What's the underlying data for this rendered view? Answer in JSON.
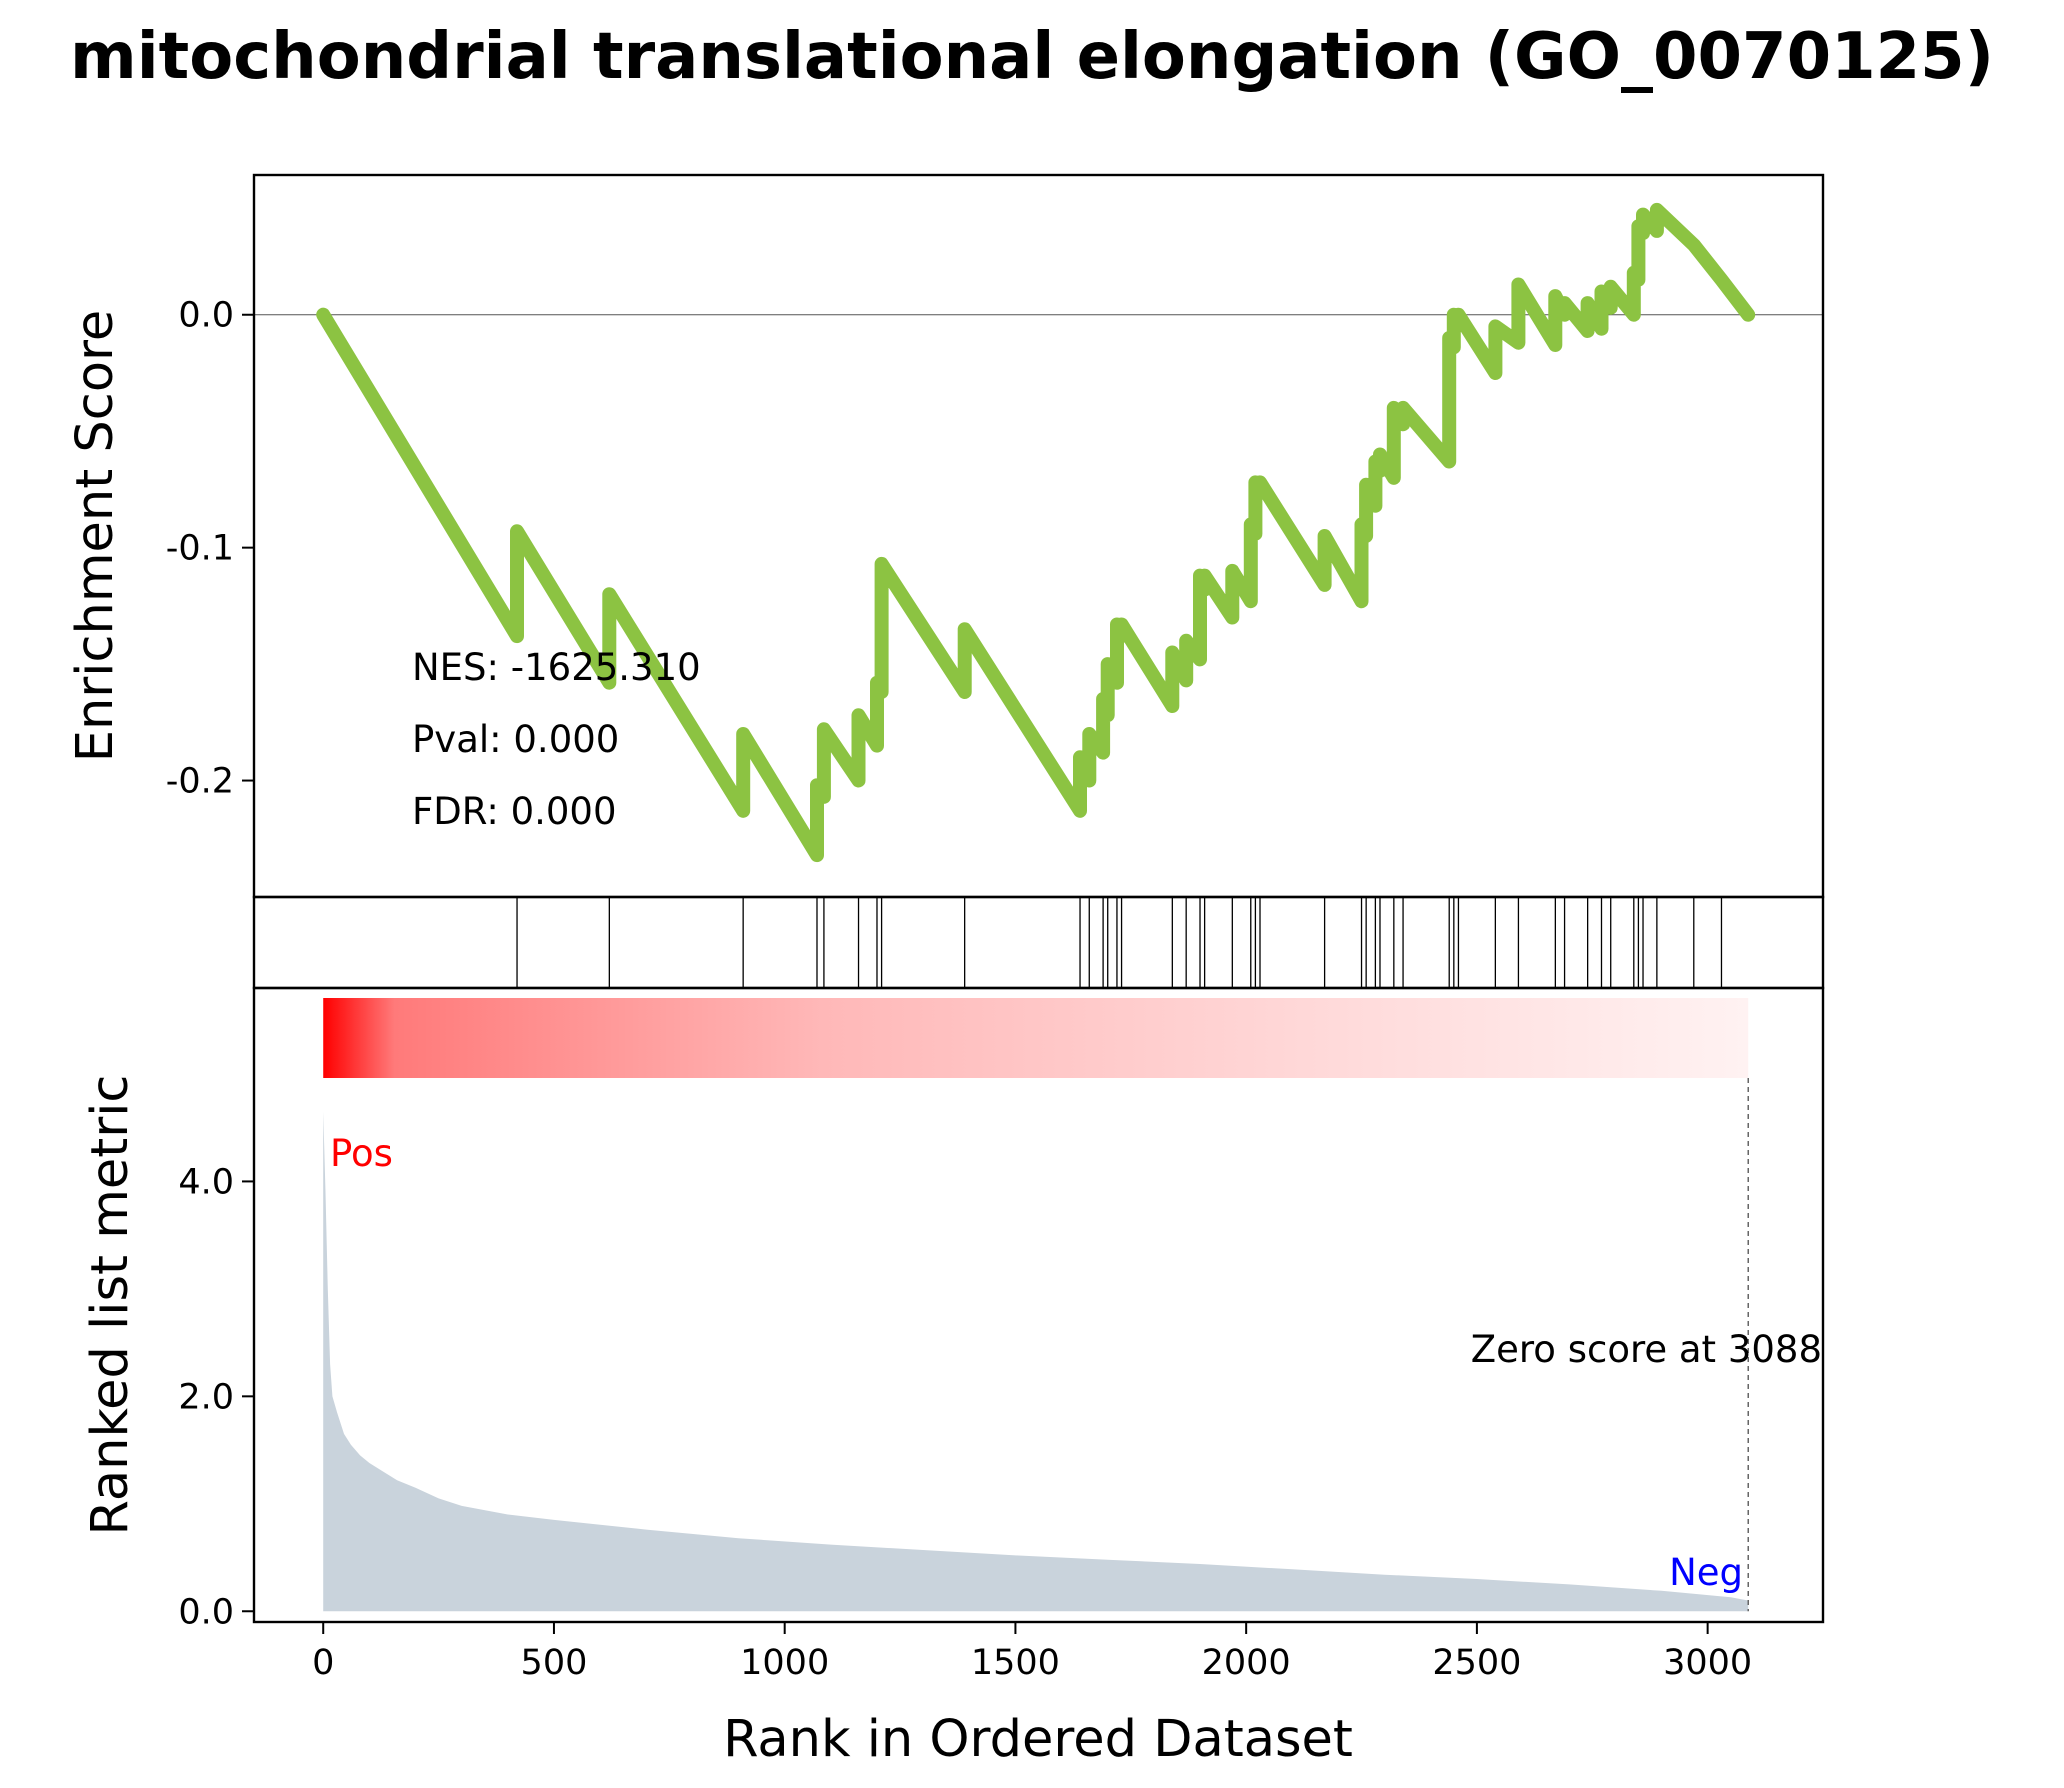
{
  "chart_data": {
    "type": "line",
    "title": "mitochondrial translational elongation (GO_0070125)",
    "xlabel": "Rank in Ordered Dataset",
    "ylabel_top": "Enrichment Score",
    "ylabel_bottom": "Ranked list metric",
    "xlim": [
      -150,
      3250
    ],
    "ylim_top": [
      -0.25,
      0.06
    ],
    "ylim_bottom": [
      -0.1,
      5.8
    ],
    "x_ticks": [
      0,
      500,
      1000,
      1500,
      2000,
      2500,
      3000
    ],
    "x_tick_labels": [
      "0",
      "500",
      "1000",
      "1500",
      "2000",
      "2500",
      "3000"
    ],
    "y_ticks_top": [
      0.0,
      -0.1,
      -0.2
    ],
    "y_tick_labels_top": [
      "0.0",
      "-0.1",
      "-0.2"
    ],
    "y_ticks_bottom": [
      0.0,
      2.0,
      4.0
    ],
    "y_tick_labels_bottom": [
      "0.0",
      "2.0",
      "4.0"
    ],
    "stats": {
      "nes": "NES: -1625.310",
      "pval": "Pval: 0.000",
      "fdr": "FDR: 0.000"
    },
    "annotations": {
      "pos": "Pos",
      "neg": "Neg",
      "zero": "Zero score at 3088",
      "zero_rank": 3088
    },
    "hit_ranks": [
      420,
      620,
      910,
      1070,
      1085,
      1160,
      1200,
      1210,
      1390,
      1640,
      1660,
      1690,
      1700,
      1720,
      1730,
      1840,
      1870,
      1900,
      1910,
      1970,
      2010,
      2020,
      2030,
      2170,
      2250,
      2260,
      2280,
      2290,
      2320,
      2340,
      2440,
      2450,
      2460,
      2540,
      2590,
      2670,
      2690,
      2740,
      2770,
      2790,
      2840,
      2850,
      2860,
      2890,
      2970,
      3030
    ],
    "es_profile": {
      "x": [
        0,
        420,
        420,
        620,
        620,
        910,
        910,
        1070,
        1070,
        1085,
        1085,
        1160,
        1160,
        1200,
        1200,
        1210,
        1210,
        1390,
        1390,
        1640,
        1640,
        1660,
        1660,
        1690,
        1690,
        1700,
        1700,
        1720,
        1720,
        1730,
        1730,
        1840,
        1840,
        1870,
        1870,
        1900,
        1900,
        1910,
        1910,
        1970,
        1970,
        2010,
        2010,
        2020,
        2020,
        2030,
        2030,
        2170,
        2170,
        2250,
        2250,
        2260,
        2260,
        2280,
        2280,
        2290,
        2290,
        2320,
        2320,
        2340,
        2340,
        2440,
        2440,
        2450,
        2450,
        2460,
        2460,
        2540,
        2540,
        2590,
        2590,
        2670,
        2670,
        2690,
        2690,
        2740,
        2740,
        2770,
        2770,
        2790,
        2790,
        2840,
        2840,
        2850,
        2850,
        2860,
        2860,
        2890,
        2890,
        2970,
        2970,
        3030,
        3030,
        3088
      ],
      "y": [
        0.0,
        -0.138,
        -0.093,
        -0.158,
        -0.12,
        -0.213,
        -0.18,
        -0.232,
        -0.202,
        -0.207,
        -0.178,
        -0.2,
        -0.172,
        -0.185,
        -0.158,
        -0.162,
        -0.107,
        -0.162,
        -0.135,
        -0.213,
        -0.19,
        -0.2,
        -0.18,
        -0.188,
        -0.165,
        -0.172,
        -0.15,
        -0.158,
        -0.133,
        -0.138,
        -0.133,
        -0.168,
        -0.145,
        -0.157,
        -0.14,
        -0.148,
        -0.112,
        -0.118,
        -0.112,
        -0.13,
        -0.11,
        -0.123,
        -0.09,
        -0.094,
        -0.072,
        -0.076,
        -0.072,
        -0.116,
        -0.095,
        -0.123,
        -0.09,
        -0.095,
        -0.073,
        -0.082,
        -0.063,
        -0.067,
        -0.06,
        -0.07,
        -0.04,
        -0.047,
        -0.04,
        -0.063,
        -0.01,
        -0.014,
        0.0,
        -0.003,
        0.0,
        -0.025,
        -0.005,
        -0.012,
        0.013,
        -0.013,
        0.008,
        0.0,
        0.005,
        -0.007,
        0.005,
        -0.006,
        0.01,
        0.003,
        0.012,
        0.0,
        0.018,
        0.015,
        0.038,
        0.035,
        0.043,
        0.036,
        0.045,
        0.03,
        0.03,
        0.015,
        0.015,
        0.0
      ]
    },
    "metric_profile": {
      "x": [
        0,
        5,
        10,
        15,
        20,
        30,
        45,
        60,
        80,
        100,
        130,
        160,
        200,
        250,
        300,
        400,
        500,
        700,
        900,
        1100,
        1300,
        1500,
        1700,
        1900,
        2100,
        2300,
        2500,
        2700,
        2900,
        3050,
        3088
      ],
      "y": [
        4.65,
        3.9,
        3.0,
        2.3,
        2.0,
        1.85,
        1.65,
        1.55,
        1.45,
        1.38,
        1.3,
        1.22,
        1.15,
        1.05,
        0.98,
        0.9,
        0.85,
        0.76,
        0.68,
        0.62,
        0.57,
        0.52,
        0.48,
        0.44,
        0.39,
        0.34,
        0.3,
        0.25,
        0.19,
        0.13,
        0.1
      ]
    },
    "colors": {
      "es_line": "#8cc342",
      "metric_fill": "#c9d3dc",
      "pos_label": "#ff0000",
      "neg_label": "#0000ff",
      "gradient_start": "#ff0000",
      "gradient_end": "#fff2f2"
    }
  }
}
